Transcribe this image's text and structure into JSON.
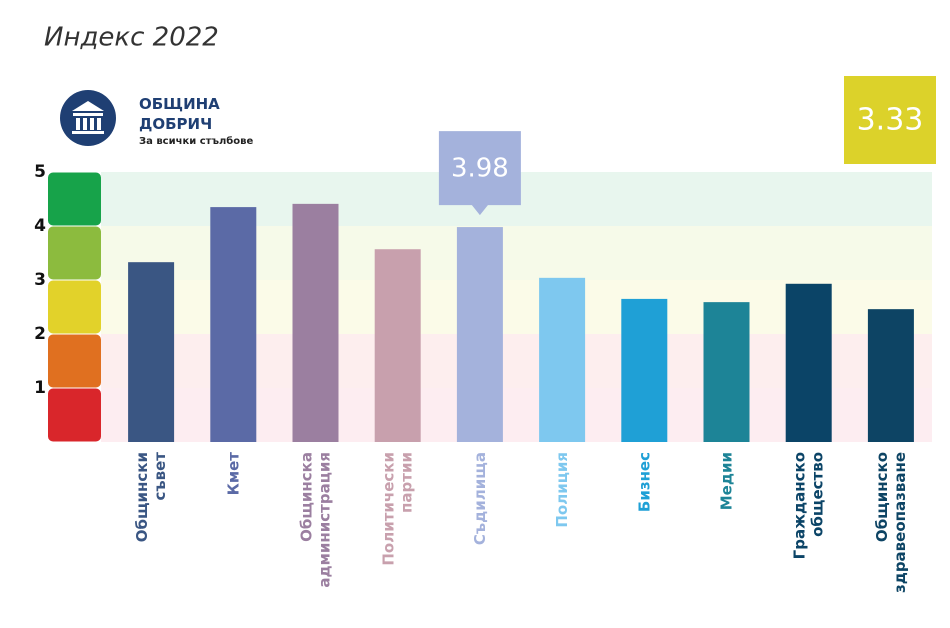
{
  "chart_data": {
    "type": "bar",
    "title": "Индекс 2022",
    "org_name": "ОБЩИНА ДОБРИЧ",
    "subtitle": "За всички стълбове",
    "index_value": 3.33,
    "categories": [
      "Общински съвет",
      "Кмет",
      "Общинска администрация",
      "Политически партии",
      "Съдилища",
      "Полиция",
      "Бизнес",
      "Медии",
      "Гражданско общество",
      "Общинско здравеопазване"
    ],
    "values": [
      3.33,
      4.35,
      4.41,
      3.57,
      3.98,
      3.04,
      2.65,
      2.59,
      2.93,
      2.46
    ],
    "colors": [
      "#3a5683",
      "#5b6aa6",
      "#9b7fa0",
      "#c8a0ad",
      "#a4b2dc",
      "#7ec8ef",
      "#1fa0d6",
      "#1d8497",
      "#0b4467",
      "#0d4464"
    ],
    "highlight_index": 4,
    "ylim": [
      0,
      5
    ],
    "yticks": [
      1,
      2,
      3,
      4,
      5
    ],
    "bands": [
      {
        "from": 0,
        "to": 1,
        "color": "#d9262b",
        "bg": "#fdedf1"
      },
      {
        "from": 1,
        "to": 2,
        "color": "#e07020",
        "bg": "#fdeeee"
      },
      {
        "from": 2,
        "to": 3,
        "color": "#e2d22a",
        "bg": "#fbfbe8"
      },
      {
        "from": 3,
        "to": 4,
        "color": "#8cbb3e",
        "bg": "#f6fae9"
      },
      {
        "from": 4,
        "to": 5,
        "color": "#17a34a",
        "bg": "#e8f6ee"
      }
    ]
  }
}
